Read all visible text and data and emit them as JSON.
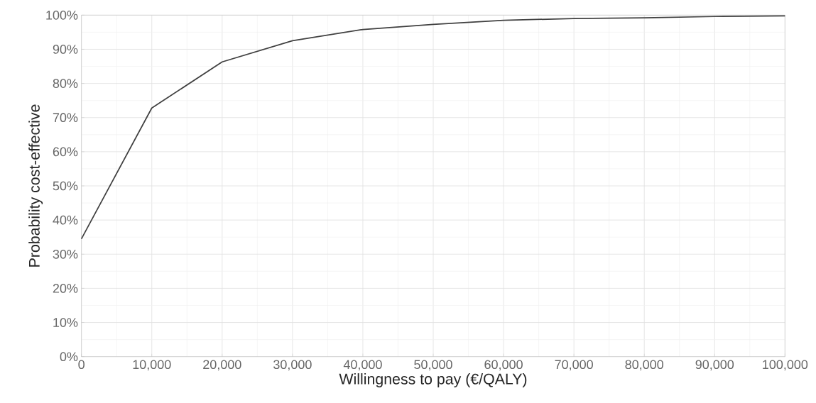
{
  "chart_data": {
    "type": "line",
    "xlabel": "Willingness to pay (€/QALY)",
    "ylabel": "Probability cost-effective",
    "x": [
      0,
      10000,
      20000,
      30000,
      40000,
      50000,
      60000,
      70000,
      80000,
      90000,
      100000
    ],
    "series": [
      {
        "color": "#404040",
        "values": [
          34.5,
          72.8,
          86.3,
          92.5,
          95.8,
          97.3,
          98.5,
          99.0,
          99.2,
          99.6,
          99.8
        ]
      }
    ],
    "xlim": [
      0,
      100000
    ],
    "ylim": [
      0,
      100
    ],
    "xticks": [
      0,
      {
        "value": 10000,
        "label": "10,000"
      },
      {
        "value": 20000,
        "label": "20,000"
      },
      {
        "value": 30000,
        "label": "30,000"
      },
      {
        "value": 40000,
        "label": "40,000"
      },
      {
        "value": 50000,
        "label": "50,000"
      },
      {
        "value": 60000,
        "label": "60,000"
      },
      {
        "value": 70000,
        "label": "70,000"
      },
      {
        "value": 80000,
        "label": "80,000"
      },
      {
        "value": 90000,
        "label": "90,000"
      },
      {
        "value": 100000,
        "label": "100,000"
      }
    ],
    "yticks": [
      {
        "value": 0,
        "label": "0%"
      },
      {
        "value": 10,
        "label": "10%"
      },
      {
        "value": 20,
        "label": "20%"
      },
      {
        "value": 30,
        "label": "30%"
      },
      {
        "value": 40,
        "label": "40%"
      },
      {
        "value": 50,
        "label": "50%"
      },
      {
        "value": 60,
        "label": "60%"
      },
      {
        "value": 70,
        "label": "70%"
      },
      {
        "value": 80,
        "label": "80%"
      },
      {
        "value": 90,
        "label": "90%"
      },
      {
        "value": 100,
        "label": "100%"
      }
    ],
    "grid": true,
    "marker": "none",
    "line_style": "solid"
  }
}
